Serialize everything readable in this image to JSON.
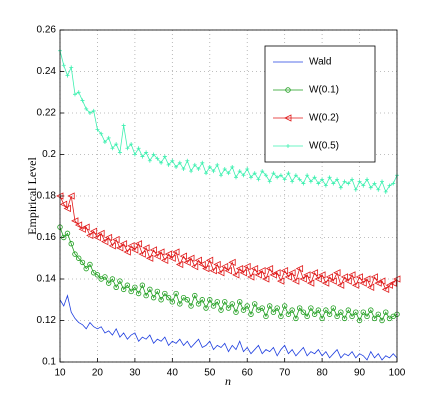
{
  "chart_data": {
    "type": "line",
    "xlabel": "n",
    "ylabel": "Empirical Level",
    "x": [
      10,
      11,
      12,
      13,
      14,
      15,
      16,
      17,
      18,
      19,
      20,
      21,
      22,
      23,
      24,
      25,
      26,
      27,
      28,
      29,
      30,
      31,
      32,
      33,
      34,
      35,
      36,
      37,
      38,
      39,
      40,
      41,
      42,
      43,
      44,
      45,
      46,
      47,
      48,
      49,
      50,
      51,
      52,
      53,
      54,
      55,
      56,
      57,
      58,
      59,
      60,
      61,
      62,
      63,
      64,
      65,
      66,
      67,
      68,
      69,
      70,
      71,
      72,
      73,
      74,
      75,
      76,
      77,
      78,
      79,
      80,
      81,
      82,
      83,
      84,
      85,
      86,
      87,
      88,
      89,
      90,
      91,
      92,
      93,
      94,
      95,
      96,
      97,
      98,
      99,
      100
    ],
    "xlim": [
      10,
      100
    ],
    "xticks": [
      10,
      20,
      30,
      40,
      50,
      60,
      70,
      80,
      90,
      100
    ],
    "ylim": [
      0.1,
      0.26
    ],
    "yticks": [
      0.1,
      0.12,
      0.14,
      0.16,
      0.18,
      0.2,
      0.22,
      0.24,
      0.26
    ],
    "grid": true,
    "legend": "upper right",
    "series": [
      {
        "name": "Wald",
        "color": "#2040e0",
        "marker": "none",
        "values": [
          0.13,
          0.127,
          0.132,
          0.124,
          0.121,
          0.119,
          0.118,
          0.116,
          0.119,
          0.117,
          0.116,
          0.117,
          0.114,
          0.115,
          0.113,
          0.116,
          0.112,
          0.114,
          0.111,
          0.113,
          0.114,
          0.11,
          0.112,
          0.111,
          0.113,
          0.109,
          0.111,
          0.11,
          0.112,
          0.108,
          0.11,
          0.109,
          0.111,
          0.108,
          0.11,
          0.107,
          0.109,
          0.111,
          0.107,
          0.108,
          0.11,
          0.106,
          0.108,
          0.107,
          0.109,
          0.105,
          0.108,
          0.106,
          0.11,
          0.105,
          0.107,
          0.104,
          0.106,
          0.108,
          0.104,
          0.106,
          0.105,
          0.107,
          0.103,
          0.106,
          0.108,
          0.104,
          0.106,
          0.103,
          0.105,
          0.107,
          0.103,
          0.105,
          0.104,
          0.106,
          0.103,
          0.105,
          0.102,
          0.104,
          0.106,
          0.102,
          0.104,
          0.103,
          0.105,
          0.102,
          0.104,
          0.103,
          0.101,
          0.105,
          0.102,
          0.104,
          0.101,
          0.103,
          0.102,
          0.104,
          0.102
        ]
      },
      {
        "name": "W(0.1)",
        "color": "#1e9e1e",
        "marker": "circle",
        "values": [
          0.165,
          0.16,
          0.162,
          0.157,
          0.152,
          0.15,
          0.148,
          0.145,
          0.147,
          0.143,
          0.142,
          0.14,
          0.141,
          0.138,
          0.14,
          0.136,
          0.139,
          0.135,
          0.137,
          0.134,
          0.136,
          0.133,
          0.137,
          0.132,
          0.135,
          0.131,
          0.134,
          0.13,
          0.133,
          0.131,
          0.129,
          0.133,
          0.128,
          0.131,
          0.13,
          0.127,
          0.132,
          0.128,
          0.13,
          0.126,
          0.13,
          0.127,
          0.129,
          0.125,
          0.129,
          0.126,
          0.128,
          0.124,
          0.129,
          0.125,
          0.127,
          0.123,
          0.128,
          0.125,
          0.126,
          0.122,
          0.127,
          0.124,
          0.126,
          0.122,
          0.127,
          0.123,
          0.125,
          0.121,
          0.126,
          0.124,
          0.122,
          0.126,
          0.123,
          0.125,
          0.121,
          0.125,
          0.123,
          0.126,
          0.122,
          0.124,
          0.121,
          0.125,
          0.122,
          0.124,
          0.12,
          0.124,
          0.122,
          0.125,
          0.121,
          0.123,
          0.12,
          0.124,
          0.121,
          0.122,
          0.123
        ]
      },
      {
        "name": "W(0.2)",
        "color": "#e01818",
        "marker": "triangle-left",
        "values": [
          0.18,
          0.176,
          0.174,
          0.18,
          0.168,
          0.166,
          0.164,
          0.165,
          0.161,
          0.163,
          0.16,
          0.162,
          0.158,
          0.16,
          0.156,
          0.159,
          0.155,
          0.157,
          0.153,
          0.156,
          0.154,
          0.157,
          0.152,
          0.155,
          0.15,
          0.154,
          0.151,
          0.153,
          0.149,
          0.152,
          0.15,
          0.153,
          0.147,
          0.151,
          0.148,
          0.15,
          0.146,
          0.149,
          0.147,
          0.145,
          0.149,
          0.144,
          0.147,
          0.143,
          0.146,
          0.144,
          0.148,
          0.142,
          0.145,
          0.143,
          0.146,
          0.141,
          0.145,
          0.142,
          0.144,
          0.14,
          0.145,
          0.142,
          0.143,
          0.139,
          0.144,
          0.141,
          0.143,
          0.139,
          0.145,
          0.14,
          0.142,
          0.138,
          0.143,
          0.14,
          0.142,
          0.138,
          0.141,
          0.139,
          0.143,
          0.137,
          0.141,
          0.139,
          0.142,
          0.137,
          0.141,
          0.138,
          0.14,
          0.136,
          0.141,
          0.138,
          0.139,
          0.135,
          0.137,
          0.138,
          0.14
        ]
      },
      {
        "name": "W(0.5)",
        "color": "#3ef0b0",
        "marker": "plus",
        "values": [
          0.25,
          0.243,
          0.238,
          0.242,
          0.229,
          0.23,
          0.226,
          0.222,
          0.22,
          0.221,
          0.212,
          0.21,
          0.206,
          0.208,
          0.203,
          0.205,
          0.201,
          0.214,
          0.203,
          0.205,
          0.2,
          0.203,
          0.199,
          0.201,
          0.197,
          0.2,
          0.198,
          0.196,
          0.199,
          0.195,
          0.197,
          0.194,
          0.196,
          0.193,
          0.197,
          0.192,
          0.195,
          0.193,
          0.196,
          0.191,
          0.194,
          0.192,
          0.195,
          0.19,
          0.193,
          0.191,
          0.194,
          0.189,
          0.192,
          0.19,
          0.193,
          0.189,
          0.191,
          0.188,
          0.192,
          0.19,
          0.187,
          0.191,
          0.189,
          0.19,
          0.188,
          0.191,
          0.187,
          0.19,
          0.188,
          0.186,
          0.19,
          0.187,
          0.189,
          0.186,
          0.188,
          0.185,
          0.189,
          0.186,
          0.188,
          0.184,
          0.187,
          0.186,
          0.188,
          0.183,
          0.187,
          0.185,
          0.188,
          0.184,
          0.186,
          0.183,
          0.187,
          0.182,
          0.185,
          0.186,
          0.19
        ]
      }
    ]
  }
}
